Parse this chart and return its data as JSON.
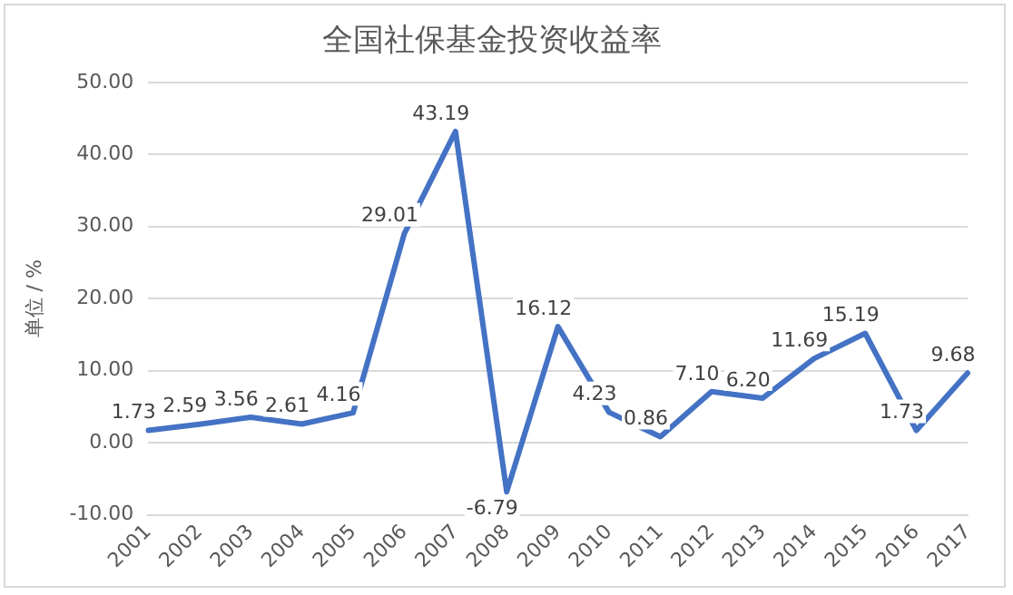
{
  "chart_data": {
    "type": "line",
    "title": "全国社保基金投资收益率",
    "ylabel": "单位 / %",
    "categories": [
      "2001",
      "2002",
      "2003",
      "2004",
      "2005",
      "2006",
      "2007",
      "2008",
      "2009",
      "2010",
      "2011",
      "2012",
      "2013",
      "2014",
      "2015",
      "2016",
      "2017"
    ],
    "series": [
      {
        "color": "#4472c4",
        "values": [
          1.73,
          2.59,
          3.56,
          2.61,
          4.16,
          29.01,
          43.19,
          -6.79,
          16.12,
          4.23,
          0.86,
          7.1,
          6.2,
          11.69,
          15.19,
          1.73,
          9.68
        ],
        "value_labels": [
          "1.73",
          "2.59",
          "3.56",
          "2.61",
          "4.16",
          "29.01",
          "43.19",
          "-6.79",
          "16.12",
          "4.23",
          "0.86",
          "7.10",
          "6.20",
          "11.69",
          "15.19",
          "1.73",
          "9.68"
        ]
      }
    ],
    "ylim": [
      -10,
      50
    ],
    "yticks": [
      {
        "value": -10,
        "label": "-10.00"
      },
      {
        "value": 0,
        "label": "0.00"
      },
      {
        "value": 10,
        "label": "10.00"
      },
      {
        "value": 20,
        "label": "20.00"
      },
      {
        "value": 30,
        "label": "30.00"
      },
      {
        "value": 40,
        "label": "40.00"
      },
      {
        "value": 50,
        "label": "50.00"
      }
    ],
    "grid": "y",
    "legend": false,
    "marker": "none",
    "line_style": "solid"
  }
}
